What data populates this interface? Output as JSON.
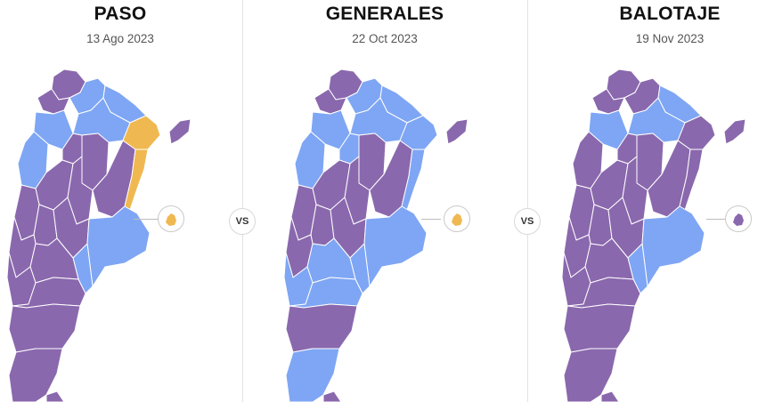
{
  "colors": {
    "purple": "#8a68ad",
    "blue": "#7ea6f4",
    "yellow": "#f0b850",
    "border": "#ffffff"
  },
  "panels": [
    {
      "title": "PASO",
      "date": "13 Ago 2023",
      "fills": {
        "NW": "purple",
        "JU": "purple",
        "SA": "blue",
        "SA2": "blue",
        "FO": "blue",
        "CA": "blue",
        "TU": "purple",
        "CH": "blue",
        "SE": "purple",
        "LR": "purple",
        "CO_S": "purple",
        "SF": "purple",
        "CO": "yellow",
        "ER": "yellow",
        "MI": "purple",
        "SJ": "purple",
        "ME": "purple",
        "SL": "purple",
        "CB": "purple",
        "BA": "blue",
        "BA_S": "blue",
        "LP": "purple",
        "NQ": "purple",
        "RN": "purple",
        "CT": "purple",
        "SC": "purple",
        "TF": "purple",
        "CABA": "yellow"
      }
    },
    {
      "title": "GENERALES",
      "date": "22 Oct 2023",
      "fills": {
        "NW": "purple",
        "JU": "purple",
        "SA": "blue",
        "SA2": "blue",
        "FO": "blue",
        "CA": "blue",
        "TU": "blue",
        "CH": "blue",
        "SE": "purple",
        "LR": "purple",
        "CO_S": "purple",
        "SF": "purple",
        "CO": "blue",
        "ER": "blue",
        "MI": "purple",
        "SJ": "purple",
        "ME": "purple",
        "SL": "purple",
        "CB": "purple",
        "BA": "blue",
        "BA_S": "blue",
        "LP": "blue",
        "NQ": "blue",
        "RN": "blue",
        "CT": "purple",
        "SC": "blue",
        "TF": "purple",
        "CABA": "yellow"
      }
    },
    {
      "title": "BALOTAJE",
      "date": "19 Nov 2023",
      "fills": {
        "NW": "purple",
        "JU": "purple",
        "SA": "purple",
        "SA2": "blue",
        "FO": "blue",
        "CA": "purple",
        "TU": "purple",
        "CH": "blue",
        "SE": "purple",
        "LR": "purple",
        "CO_S": "purple",
        "SF": "purple",
        "CO": "purple",
        "ER": "purple",
        "MI": "purple",
        "SJ": "purple",
        "ME": "purple",
        "SL": "purple",
        "CB": "purple",
        "BA": "blue",
        "BA_S": "blue",
        "LP": "purple",
        "NQ": "purple",
        "RN": "purple",
        "CT": "purple",
        "SC": "purple",
        "TF": "purple",
        "CABA": "purple"
      }
    }
  ],
  "vs_label": "VS"
}
